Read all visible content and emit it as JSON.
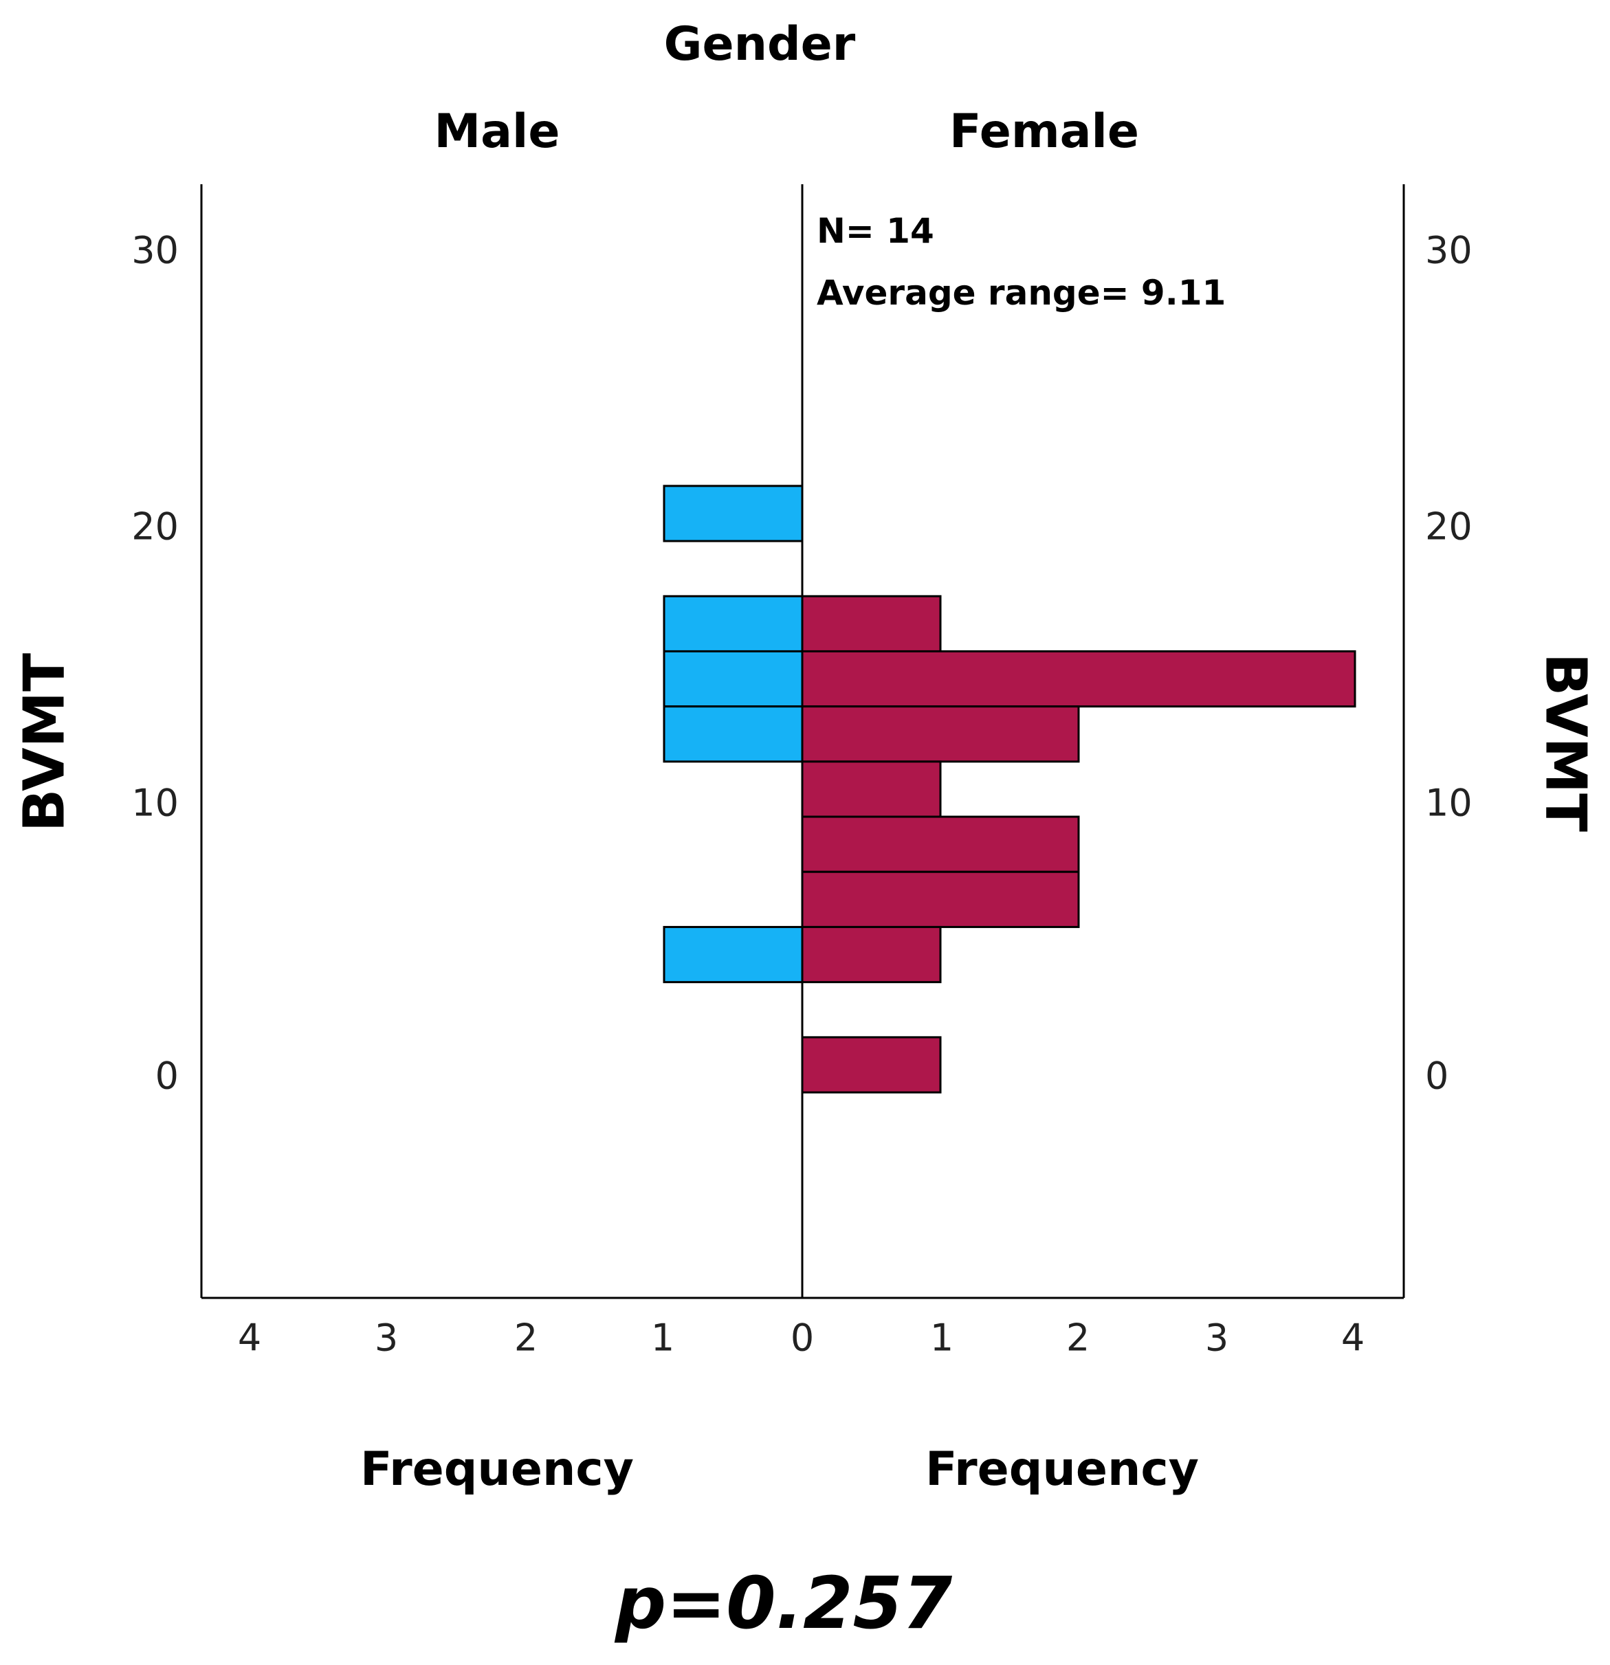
{
  "chart_data": {
    "type": "bar",
    "orientation": "horizontal",
    "subtype": "population-pyramid",
    "title": "Gender",
    "panels": [
      {
        "name": "Male",
        "color": "#16b2f6",
        "direction": "left"
      },
      {
        "name": "Female",
        "color": "#ae174b",
        "direction": "right"
      }
    ],
    "ylabel": "BVMT",
    "ylabel_right": "BVMT",
    "xlabel_left": "Frequency",
    "xlabel_right": "Frequency",
    "yticks": [
      "0",
      "10",
      "20",
      "30"
    ],
    "ytick_values": [
      0,
      10,
      20,
      30
    ],
    "ylim": [
      -8,
      32.5
    ],
    "xticks_left": [
      "4",
      "3",
      "2",
      "1",
      "0"
    ],
    "xticks_right": [
      "1",
      "2",
      "3",
      "4"
    ],
    "xlim": [
      0,
      4.35
    ],
    "bin_width": 2,
    "series": [
      {
        "name": "Male",
        "bins": [
          {
            "from": 19.5,
            "to": 21.5,
            "count": 1
          },
          {
            "from": 15.5,
            "to": 17.5,
            "count": 1
          },
          {
            "from": 13.5,
            "to": 15.5,
            "count": 1
          },
          {
            "from": 11.5,
            "to": 13.5,
            "count": 1
          },
          {
            "from": 3.5,
            "to": 5.5,
            "count": 1
          }
        ]
      },
      {
        "name": "Female",
        "bins": [
          {
            "from": 15.5,
            "to": 17.5,
            "count": 1
          },
          {
            "from": 13.5,
            "to": 15.5,
            "count": 4
          },
          {
            "from": 11.5,
            "to": 13.5,
            "count": 2
          },
          {
            "from": 9.5,
            "to": 11.5,
            "count": 1
          },
          {
            "from": 7.5,
            "to": 9.5,
            "count": 2
          },
          {
            "from": 5.5,
            "to": 7.5,
            "count": 2
          },
          {
            "from": 3.5,
            "to": 5.5,
            "count": 1
          },
          {
            "from": -0.5,
            "to": 1.5,
            "count": 1
          }
        ]
      }
    ],
    "annotations": {
      "n_label": "N= 14",
      "average_label": "Average range= 9.11"
    },
    "p_value": "p=0.257"
  }
}
